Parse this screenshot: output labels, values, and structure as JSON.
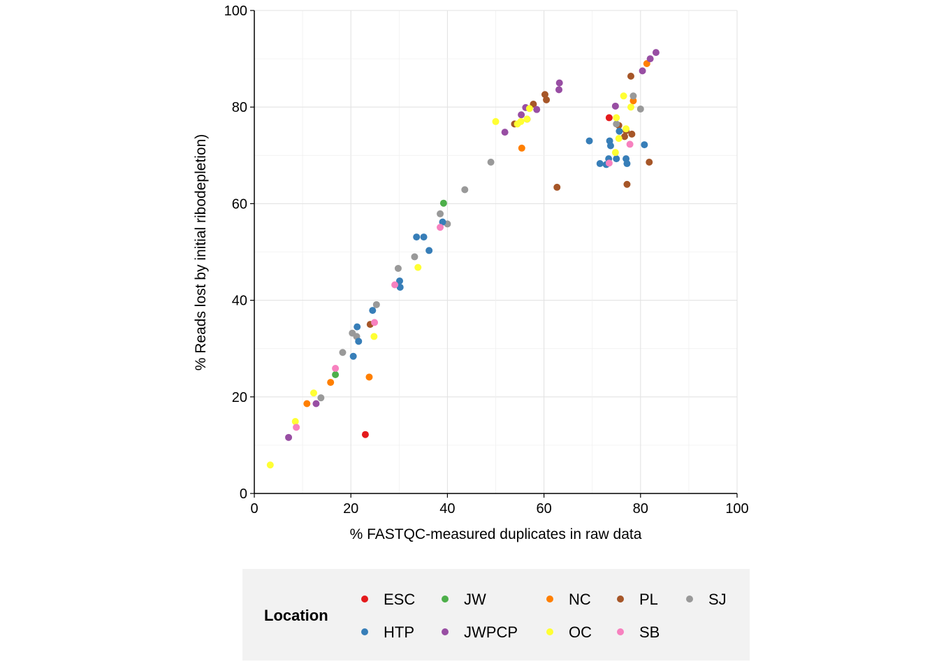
{
  "chart_data": {
    "type": "scatter",
    "xlabel": "% FASTQC-measured duplicates in raw data",
    "ylabel": "% Reads lost by initial ribodepletion)",
    "xlim": [
      0,
      100
    ],
    "ylim": [
      0,
      100
    ],
    "xticks": [
      "0",
      "20",
      "40",
      "60",
      "80",
      "100"
    ],
    "yticks": [
      "0",
      "20",
      "40",
      "60",
      "80",
      "100"
    ],
    "grid": true,
    "legend": {
      "title": "Location",
      "position": "bottom",
      "entries": [
        {
          "name": "ESC",
          "color": "#e41a1c"
        },
        {
          "name": "JW",
          "color": "#4daf4a"
        },
        {
          "name": "NC",
          "color": "#ff7f00"
        },
        {
          "name": "PL",
          "color": "#a65628"
        },
        {
          "name": "SJ",
          "color": "#999999"
        },
        {
          "name": "HTP",
          "color": "#377eb8"
        },
        {
          "name": "JWPCP",
          "color": "#984ea3"
        },
        {
          "name": "OC",
          "color": "#ffff33"
        },
        {
          "name": "SB",
          "color": "#f781bf"
        }
      ]
    },
    "series": [
      {
        "name": "ESC",
        "color": "#e41a1c",
        "points": [
          [
            23.0,
            12.2
          ],
          [
            73.5,
            77.8
          ]
        ]
      },
      {
        "name": "JW",
        "color": "#4daf4a",
        "points": [
          [
            16.8,
            24.6
          ],
          [
            39.2,
            60.1
          ]
        ]
      },
      {
        "name": "NC",
        "color": "#ff7f00",
        "points": [
          [
            10.9,
            18.6
          ],
          [
            15.8,
            23.0
          ],
          [
            23.8,
            24.1
          ],
          [
            55.4,
            71.5
          ],
          [
            78.5,
            81.3
          ],
          [
            81.3,
            89.0
          ]
        ]
      },
      {
        "name": "PL",
        "color": "#a65628",
        "points": [
          [
            24.0,
            35.0
          ],
          [
            53.9,
            76.5
          ],
          [
            56.5,
            77.5
          ],
          [
            57.8,
            80.6
          ],
          [
            60.2,
            82.6
          ],
          [
            60.5,
            81.5
          ],
          [
            62.7,
            63.4
          ],
          [
            75.5,
            76.2
          ],
          [
            76.7,
            73.9
          ],
          [
            77.0,
            75.1
          ],
          [
            77.2,
            64.0
          ],
          [
            78.0,
            86.4
          ],
          [
            78.2,
            74.4
          ],
          [
            81.8,
            68.6
          ]
        ]
      },
      {
        "name": "SJ",
        "color": "#999999",
        "points": [
          [
            13.8,
            19.8
          ],
          [
            18.3,
            29.2
          ],
          [
            20.3,
            33.2
          ],
          [
            21.2,
            32.5
          ],
          [
            25.3,
            39.1
          ],
          [
            29.8,
            46.6
          ],
          [
            33.2,
            49.0
          ],
          [
            38.5,
            57.9
          ],
          [
            40.0,
            55.8
          ],
          [
            43.6,
            62.9
          ],
          [
            49.0,
            68.6
          ],
          [
            75.0,
            76.5
          ],
          [
            78.5,
            82.3
          ],
          [
            80.0,
            79.6
          ]
        ]
      },
      {
        "name": "HTP",
        "color": "#377eb8",
        "points": [
          [
            20.5,
            28.4
          ],
          [
            21.3,
            34.5
          ],
          [
            21.6,
            31.5
          ],
          [
            24.5,
            37.9
          ],
          [
            30.1,
            44.0
          ],
          [
            30.2,
            42.7
          ],
          [
            33.6,
            53.1
          ],
          [
            35.1,
            53.1
          ],
          [
            36.2,
            50.3
          ],
          [
            39.0,
            56.2
          ],
          [
            69.4,
            73.0
          ],
          [
            71.6,
            68.3
          ],
          [
            72.9,
            68.1
          ],
          [
            73.4,
            69.3
          ],
          [
            73.6,
            73.0
          ],
          [
            73.8,
            72.0
          ],
          [
            75.0,
            69.3
          ],
          [
            75.6,
            75.0
          ],
          [
            77.0,
            69.3
          ],
          [
            77.2,
            68.3
          ],
          [
            80.8,
            72.2
          ]
        ]
      },
      {
        "name": "JWPCP",
        "color": "#984ea3",
        "points": [
          [
            7.1,
            11.6
          ],
          [
            12.8,
            18.6
          ],
          [
            51.9,
            74.8
          ],
          [
            55.3,
            78.4
          ],
          [
            56.2,
            79.9
          ],
          [
            58.5,
            79.5
          ],
          [
            63.1,
            83.6
          ],
          [
            63.2,
            85.0
          ],
          [
            74.8,
            80.2
          ],
          [
            80.4,
            87.5
          ],
          [
            82.0,
            90.0
          ],
          [
            83.2,
            91.3
          ]
        ]
      },
      {
        "name": "OC",
        "color": "#ffff33",
        "points": [
          [
            3.3,
            5.9
          ],
          [
            8.5,
            14.9
          ],
          [
            12.3,
            20.8
          ],
          [
            24.8,
            32.5
          ],
          [
            33.9,
            46.8
          ],
          [
            50.0,
            77.0
          ],
          [
            54.5,
            76.5
          ],
          [
            55.2,
            77.0
          ],
          [
            56.5,
            77.5
          ],
          [
            57.0,
            79.7
          ],
          [
            74.8,
            70.6
          ],
          [
            75.0,
            77.8
          ],
          [
            75.5,
            73.5
          ],
          [
            76.5,
            82.3
          ],
          [
            77.0,
            75.5
          ],
          [
            78.0,
            80.0
          ]
        ]
      },
      {
        "name": "SB",
        "color": "#f781bf",
        "points": [
          [
            8.7,
            13.7
          ],
          [
            16.8,
            25.9
          ],
          [
            29.1,
            43.2
          ],
          [
            24.9,
            35.4
          ],
          [
            38.5,
            55.1
          ],
          [
            73.5,
            68.4
          ],
          [
            77.8,
            72.3
          ]
        ]
      }
    ]
  }
}
